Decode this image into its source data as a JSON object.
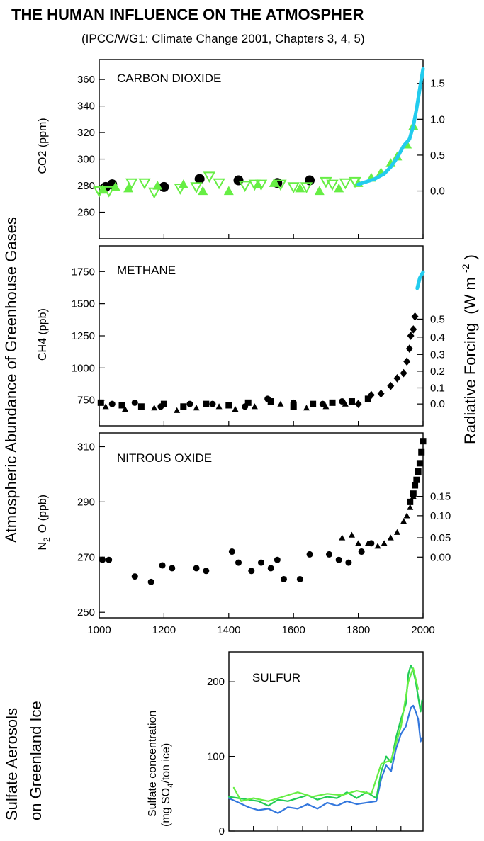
{
  "title": "THE HUMAN INFLUENCE ON THE ATMOSPHER",
  "subtitle": "(IPCC/WG1: Climate Change 2001, Chapters 3, 4, 5)",
  "left_group_label": "Atmospheric Abundance of Greenhouse Gases",
  "right_axis_label": "Radiative Forcing",
  "right_axis_unit": "(W m",
  "right_axis_unit_exp": "-2",
  "right_axis_unit_close": ")",
  "sulfate_group_label_line1": "Sulfate Aerosols",
  "sulfate_group_label_line2": "on Greenland Ice",
  "colors": {
    "black": "#000000",
    "light_green": "#66ee44",
    "cyan": "#22ccee",
    "green": "#22cc55",
    "blue": "#3377dd"
  },
  "chart_data": [
    {
      "type": "scatter",
      "panel": "CARBON DIOXIDE",
      "ylabel": "CO2 (ppm)",
      "ylim": [
        240,
        375
      ],
      "yticks": [
        260,
        280,
        300,
        320,
        340,
        360
      ],
      "right_ticks": [
        "0.0",
        "0.5",
        "1.0",
        "1.5"
      ],
      "xlim": [
        1000,
        2000
      ],
      "series": [
        {
          "marker": "circle",
          "color": "#000000",
          "x": [
            1020,
            1040,
            1200,
            1310,
            1430,
            1550,
            1650
          ],
          "y": [
            279,
            281,
            279,
            285,
            284,
            282,
            284
          ]
        },
        {
          "marker": "triangle-up",
          "color": "#66ee44",
          "x": [
            1010,
            1050,
            1090,
            1180,
            1260,
            1320,
            1400,
            1490,
            1540,
            1620,
            1680,
            1740,
            1800,
            1840,
            1870,
            1900,
            1920,
            1950,
            1970
          ],
          "y": [
            277,
            279,
            278,
            280,
            281,
            276,
            276,
            281,
            282,
            278,
            276,
            278,
            282,
            286,
            290,
            297,
            302,
            311,
            325
          ]
        },
        {
          "marker": "triangle-down",
          "color": "#66ee44",
          "x": [
            1000,
            1030,
            1100,
            1140,
            1170,
            1250,
            1300,
            1340,
            1370,
            1450,
            1480,
            1500,
            1560,
            1600,
            1640,
            1700,
            1720,
            1760,
            1790
          ],
          "y": [
            276,
            276,
            282,
            282,
            275,
            278,
            279,
            287,
            282,
            280,
            281,
            281,
            281,
            279,
            279,
            283,
            281,
            282,
            283
          ]
        },
        {
          "marker": "line",
          "color": "#22ccee",
          "x": [
            1800,
            1850,
            1880,
            1900,
            1920,
            1940,
            1958,
            1970,
            1980,
            1990,
            2000
          ],
          "y": [
            281,
            285,
            289,
            294,
            301,
            310,
            315,
            325,
            338,
            353,
            368
          ]
        }
      ]
    },
    {
      "type": "scatter",
      "panel": "METHANE",
      "ylabel": "CH4 (ppb)",
      "ylim": [
        550,
        1950
      ],
      "yticks": [
        750,
        1000,
        1250,
        1500,
        1750
      ],
      "right_ticks": [
        "0.0",
        "0.1",
        "0.2",
        "0.3",
        "0.4",
        "0.5"
      ],
      "xlim": [
        1000,
        2000
      ],
      "series": [
        {
          "marker": "square",
          "color": "#000000",
          "x": [
            1005,
            1070,
            1130,
            1200,
            1260,
            1330,
            1400,
            1460,
            1530,
            1600,
            1660,
            1720,
            1780,
            1830
          ],
          "y": [
            730,
            710,
            700,
            720,
            700,
            720,
            710,
            730,
            740,
            700,
            720,
            730,
            740,
            760
          ]
        },
        {
          "marker": "triangle-up",
          "color": "#000000",
          "x": [
            1020,
            1080,
            1170,
            1240,
            1300,
            1370,
            1420,
            1480,
            1560,
            1640,
            1700,
            1760
          ],
          "y": [
            700,
            680,
            690,
            670,
            690,
            700,
            680,
            700,
            720,
            690,
            700,
            720
          ]
        },
        {
          "marker": "circle",
          "color": "#000000",
          "x": [
            1040,
            1110,
            1190,
            1280,
            1350,
            1450,
            1520,
            1600,
            1690,
            1750
          ],
          "y": [
            720,
            730,
            700,
            720,
            720,
            700,
            760,
            730,
            720,
            740
          ]
        },
        {
          "marker": "diamond",
          "color": "#000000",
          "x": [
            1800,
            1840,
            1870,
            1900,
            1920,
            1940,
            1950,
            1958,
            1962,
            1970,
            1975
          ],
          "y": [
            720,
            790,
            800,
            860,
            920,
            960,
            1050,
            1150,
            1250,
            1300,
            1400
          ]
        },
        {
          "marker": "line",
          "color": "#22ccee",
          "x": [
            1982,
            1990,
            2000
          ],
          "y": [
            1620,
            1700,
            1745
          ]
        }
      ]
    },
    {
      "type": "scatter",
      "panel": "NITROUS OXIDE",
      "ylabel": "N2O (ppb)",
      "ylim": [
        248,
        315
      ],
      "yticks": [
        250,
        270,
        290,
        310
      ],
      "right_ticks": [
        "0.00",
        "0.05",
        "0.10",
        "0.15"
      ],
      "xlim": [
        1000,
        2000
      ],
      "xticks": [
        1000,
        1200,
        1400,
        1600,
        1800,
        2000
      ],
      "series": [
        {
          "marker": "circle",
          "color": "#000000",
          "x": [
            1010,
            1030,
            1110,
            1160,
            1195,
            1225,
            1300,
            1330,
            1410,
            1430,
            1470,
            1500,
            1530,
            1550,
            1570,
            1620,
            1650,
            1710,
            1740,
            1770,
            1810,
            1840
          ],
          "y": [
            269,
            269,
            263,
            261,
            267,
            266,
            266,
            265,
            272,
            268,
            265,
            268,
            266,
            269,
            262,
            262,
            271,
            271,
            269,
            268,
            272,
            275
          ]
        },
        {
          "marker": "triangle-up",
          "color": "#000000",
          "x": [
            1750,
            1780,
            1800,
            1830,
            1860,
            1880,
            1900,
            1920,
            1940,
            1950,
            1960,
            1970
          ],
          "y": [
            277,
            278,
            275,
            275,
            274,
            275,
            277,
            279,
            283,
            285,
            288,
            292
          ]
        },
        {
          "marker": "square",
          "color": "#000000",
          "x": [
            1960,
            1970,
            1975,
            1980,
            1985,
            1990,
            1995,
            2000
          ],
          "y": [
            290,
            293,
            296,
            298,
            301,
            304,
            308,
            312
          ]
        }
      ]
    },
    {
      "type": "line",
      "panel": "SULFUR",
      "ylabel": "Sulfate concentration (mg SO4= /ton ice)",
      "ylabel_line1": "Sulfate concentration",
      "ylabel_line2": "(mg SO",
      "ylabel_line2b": "4",
      "ylabel_line2c": "/ton ice)",
      "ylim": [
        0,
        240
      ],
      "yticks": [
        0,
        100,
        200
      ],
      "xlim": [
        1600,
        1995
      ],
      "series": [
        {
          "color": "#3377dd",
          "x": [
            1600,
            1620,
            1640,
            1660,
            1680,
            1700,
            1720,
            1740,
            1760,
            1780,
            1800,
            1820,
            1840,
            1860,
            1880,
            1900,
            1910,
            1920,
            1930,
            1940,
            1950,
            1960,
            1970,
            1975,
            1980,
            1985,
            1990,
            1993
          ],
          "y": [
            44,
            38,
            32,
            28,
            30,
            24,
            32,
            30,
            36,
            30,
            38,
            34,
            40,
            36,
            38,
            40,
            70,
            88,
            80,
            110,
            130,
            140,
            165,
            168,
            160,
            150,
            120,
            125
          ]
        },
        {
          "color": "#22cc55",
          "x": [
            1600,
            1620,
            1640,
            1660,
            1680,
            1700,
            1720,
            1740,
            1760,
            1780,
            1800,
            1820,
            1840,
            1860,
            1880,
            1900,
            1910,
            1920,
            1930,
            1940,
            1950,
            1960,
            1965,
            1970,
            1975,
            1980,
            1985,
            1990,
            1993
          ],
          "y": [
            46,
            44,
            42,
            40,
            34,
            42,
            40,
            44,
            48,
            42,
            46,
            44,
            52,
            44,
            52,
            44,
            80,
            100,
            92,
            125,
            150,
            170,
            210,
            222,
            215,
            200,
            180,
            160,
            175
          ]
        },
        {
          "color": "#66ee44",
          "x": [
            1610,
            1625,
            1650,
            1680,
            1710,
            1740,
            1770,
            1800,
            1830,
            1860,
            1890,
            1910,
            1930,
            1950,
            1965,
            1975,
            1985
          ],
          "y": [
            58,
            40,
            44,
            40,
            46,
            52,
            46,
            50,
            48,
            54,
            50,
            90,
            95,
            140,
            200,
            218,
            190
          ]
        }
      ]
    }
  ]
}
